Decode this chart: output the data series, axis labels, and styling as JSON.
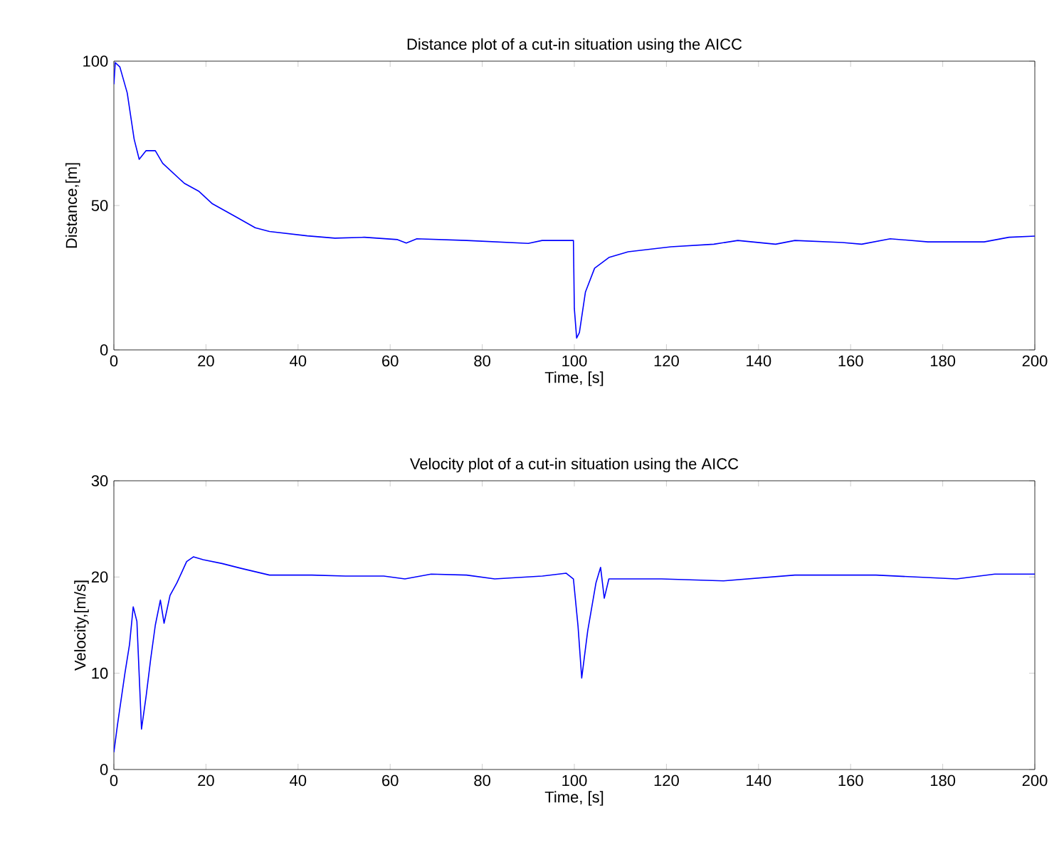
{
  "chart_data": [
    {
      "type": "line",
      "title": "Distance plot of a cut-in situation using the AICC",
      "xlabel": "Time, [s]",
      "ylabel": "Distance,[m]",
      "xlim": [
        0,
        200
      ],
      "ylim": [
        0,
        100
      ],
      "xticks": [
        0,
        20,
        40,
        60,
        80,
        100,
        120,
        140,
        160,
        180,
        200
      ],
      "yticks": [
        0,
        50,
        100
      ],
      "series": [
        {
          "color": "#0000ff",
          "x": [
            0,
            0.3,
            1.3,
            2.9,
            4.4,
            5.5,
            7,
            9,
            10.6,
            15.3,
            18.4,
            21.4,
            26.6,
            30.7,
            33.8,
            42,
            48,
            54.4,
            61.6,
            63.5,
            65.8,
            76.6,
            90,
            93,
            99.8,
            100,
            100.5,
            101.1,
            102.4,
            104.4,
            107.5,
            111.7,
            121,
            130.3,
            135.5,
            143.7,
            147.9,
            158.2,
            162.4,
            168.6,
            176.8,
            189,
            194.4,
            200
          ],
          "values": [
            92,
            99.5,
            98,
            89,
            73,
            66,
            69,
            69,
            64.6,
            57.7,
            55,
            50.6,
            46,
            42.3,
            41,
            39.5,
            38.7,
            39,
            38.2,
            37,
            38.5,
            37.9,
            36.9,
            37.9,
            37.9,
            14.3,
            4.1,
            6,
            20,
            28.3,
            32,
            34,
            35.7,
            36.6,
            37.9,
            36.6,
            37.9,
            37.2,
            36.6,
            38.5,
            37.4,
            37.4,
            39,
            39.4
          ]
        }
      ]
    },
    {
      "type": "line",
      "title": "Velocity plot of a cut-in situation using the AICC",
      "xlabel": "Time, [s]",
      "ylabel": "Velocity,[m/s]",
      "xlim": [
        0,
        200
      ],
      "ylim": [
        0,
        30
      ],
      "xticks": [
        0,
        20,
        40,
        60,
        80,
        100,
        120,
        140,
        160,
        180,
        200
      ],
      "yticks": [
        0,
        10,
        20,
        30
      ],
      "series": [
        {
          "color": "#0000ff",
          "x": [
            0,
            0.8,
            2.4,
            3.4,
            4.2,
            5,
            6,
            7,
            8,
            9,
            10.1,
            10.9,
            12.2,
            13.7,
            15.8,
            17.3,
            19.4,
            23.5,
            27.6,
            33.8,
            43,
            50.3,
            58.6,
            63.2,
            68.9,
            76.6,
            82.7,
            93,
            98.2,
            99.8,
            100.8,
            101.6,
            102.9,
            104.7,
            105.7,
            106.5,
            107.5,
            118.9,
            132.4,
            147.9,
            165.5,
            183,
            191.3,
            200
          ],
          "values": [
            1.8,
            4.7,
            10,
            13,
            16.9,
            15.4,
            4.2,
            7.6,
            11.5,
            15,
            17.6,
            15.2,
            18.1,
            19.4,
            21.6,
            22.1,
            21.8,
            21.4,
            20.9,
            20.2,
            20.2,
            20.1,
            20.1,
            19.8,
            20.3,
            20.2,
            19.8,
            20.1,
            20.4,
            19.8,
            14.9,
            9.5,
            14.4,
            19.4,
            21,
            17.8,
            19.8,
            19.8,
            19.6,
            20.2,
            20.2,
            19.8,
            20.3,
            20.3
          ]
        }
      ]
    }
  ]
}
